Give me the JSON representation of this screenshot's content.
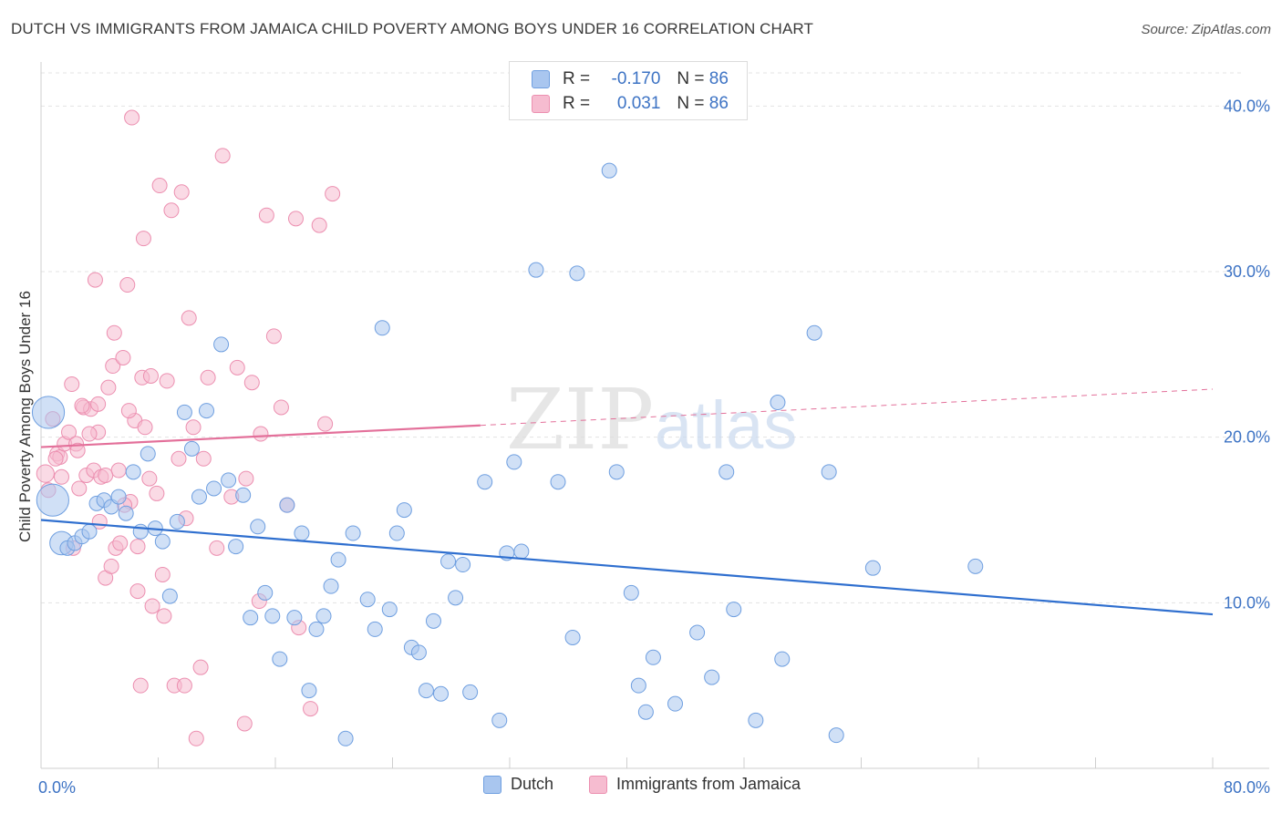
{
  "title": "DUTCH VS IMMIGRANTS FROM JAMAICA CHILD POVERTY AMONG BOYS UNDER 16 CORRELATION CHART",
  "source": "Source: ZipAtlas.com",
  "watermark": {
    "zip": "ZIP",
    "atlas": "atlas"
  },
  "colors": {
    "dutch_fill": "#a9c6ef",
    "dutch_stroke": "#6f9fe0",
    "dutch_line": "#2f6fcf",
    "jamaica_fill": "#f6bcd0",
    "jamaica_stroke": "#ec8fb0",
    "jamaica_line": "#e3709a",
    "axis_label": "#3d73c4",
    "grid": "#e3e3e3"
  },
  "stats": [
    {
      "r_label": "R =",
      "r_value": "-0.170",
      "n_label": "N =",
      "n_value": "86"
    },
    {
      "r_label": "R =",
      "r_value": "0.031",
      "n_label": "N =",
      "n_value": "86"
    }
  ],
  "legend": [
    "Dutch",
    "Immigrants from Jamaica"
  ],
  "chart_data": {
    "type": "scatter",
    "xlabel": "",
    "ylabel": "Child Poverty Among Boys Under 16",
    "xlim": [
      0,
      80
    ],
    "ylim": [
      0,
      42
    ],
    "x_tick_labels": [
      "0.0%",
      "80.0%"
    ],
    "y_tick_labels": [
      "10.0%",
      "20.0%",
      "30.0%",
      "40.0%"
    ],
    "y_ticks": [
      10,
      20,
      30,
      40
    ],
    "x_tick_marks": [
      0,
      8,
      16,
      24,
      32,
      40,
      48,
      56,
      64,
      72,
      80
    ],
    "grid": true,
    "legend_placement": "bottom",
    "series": [
      {
        "name": "Dutch",
        "trend": {
          "x": [
            0,
            80
          ],
          "y": [
            15.0,
            9.3
          ],
          "dashed_from": null
        },
        "points": [
          [
            0.5,
            21.5,
            22
          ],
          [
            0.8,
            16.2,
            22
          ],
          [
            1.4,
            13.6,
            16
          ],
          [
            1.8,
            13.3,
            10
          ],
          [
            2.3,
            13.6,
            10
          ],
          [
            2.8,
            14.0,
            10
          ],
          [
            3.3,
            14.3,
            10
          ],
          [
            3.8,
            16.0,
            10
          ],
          [
            4.3,
            16.2,
            10
          ],
          [
            4.8,
            15.8,
            10
          ],
          [
            5.3,
            16.4,
            10
          ],
          [
            5.8,
            15.4,
            10
          ],
          [
            6.3,
            17.9,
            10
          ],
          [
            6.8,
            14.3,
            10
          ],
          [
            7.3,
            19.0,
            10
          ],
          [
            7.8,
            14.5,
            10
          ],
          [
            8.3,
            13.7,
            10
          ],
          [
            8.8,
            10.4,
            10
          ],
          [
            9.3,
            14.9,
            10
          ],
          [
            9.8,
            21.5,
            10
          ],
          [
            10.3,
            19.3,
            10
          ],
          [
            10.8,
            16.4,
            10
          ],
          [
            11.3,
            21.6,
            10
          ],
          [
            11.8,
            16.9,
            10
          ],
          [
            12.3,
            25.6,
            10
          ],
          [
            12.8,
            17.4,
            10
          ],
          [
            13.3,
            13.4,
            10
          ],
          [
            13.8,
            16.5,
            10
          ],
          [
            14.3,
            9.1,
            10
          ],
          [
            14.8,
            14.6,
            10
          ],
          [
            15.3,
            10.6,
            10
          ],
          [
            15.8,
            9.2,
            10
          ],
          [
            16.3,
            6.6,
            10
          ],
          [
            16.8,
            15.9,
            10
          ],
          [
            17.3,
            9.1,
            10
          ],
          [
            17.8,
            14.2,
            10
          ],
          [
            18.3,
            4.7,
            10
          ],
          [
            18.8,
            8.4,
            10
          ],
          [
            19.3,
            9.2,
            10
          ],
          [
            19.8,
            11.0,
            10
          ],
          [
            20.3,
            12.6,
            10
          ],
          [
            20.8,
            1.8,
            10
          ],
          [
            21.3,
            14.2,
            10
          ],
          [
            22.3,
            10.2,
            10
          ],
          [
            22.8,
            8.4,
            10
          ],
          [
            23.3,
            26.6,
            10
          ],
          [
            23.8,
            9.6,
            10
          ],
          [
            24.3,
            14.2,
            10
          ],
          [
            24.8,
            15.6,
            10
          ],
          [
            25.3,
            7.3,
            10
          ],
          [
            25.8,
            7.0,
            10
          ],
          [
            26.3,
            4.7,
            10
          ],
          [
            26.8,
            8.9,
            10
          ],
          [
            27.3,
            4.5,
            10
          ],
          [
            27.8,
            12.5,
            10
          ],
          [
            28.3,
            10.3,
            10
          ],
          [
            28.8,
            12.3,
            10
          ],
          [
            29.3,
            4.6,
            10
          ],
          [
            30.3,
            17.3,
            10
          ],
          [
            31.3,
            2.9,
            10
          ],
          [
            31.8,
            13.0,
            10
          ],
          [
            32.3,
            18.5,
            10
          ],
          [
            32.8,
            13.1,
            10
          ],
          [
            33.8,
            30.1,
            10
          ],
          [
            35.3,
            17.3,
            10
          ],
          [
            36.3,
            7.9,
            10
          ],
          [
            36.6,
            29.9,
            10
          ],
          [
            38.8,
            36.1,
            10
          ],
          [
            39.3,
            17.9,
            10
          ],
          [
            40.3,
            10.6,
            10
          ],
          [
            40.8,
            5.0,
            10
          ],
          [
            41.3,
            3.4,
            10
          ],
          [
            41.8,
            6.7,
            10
          ],
          [
            43.3,
            3.9,
            10
          ],
          [
            44.8,
            8.2,
            10
          ],
          [
            45.8,
            5.5,
            10
          ],
          [
            46.8,
            17.9,
            10
          ],
          [
            47.3,
            9.6,
            10
          ],
          [
            48.8,
            2.9,
            10
          ],
          [
            50.3,
            22.1,
            10
          ],
          [
            50.6,
            6.6,
            10
          ],
          [
            52.8,
            26.3,
            10
          ],
          [
            53.8,
            17.9,
            10
          ],
          [
            54.3,
            2.0,
            10
          ],
          [
            56.8,
            12.1,
            10
          ],
          [
            63.8,
            12.2,
            10
          ]
        ]
      },
      {
        "name": "Immigrants from Jamaica",
        "trend": {
          "x": [
            0,
            80
          ],
          "y": [
            19.4,
            22.9
          ],
          "dashed_from": 30
        },
        "points": [
          [
            0.3,
            17.8,
            12
          ],
          [
            0.5,
            16.8,
            10
          ],
          [
            0.8,
            21.1,
            10
          ],
          [
            1.1,
            19.0,
            10
          ],
          [
            1.3,
            18.8,
            10
          ],
          [
            1.6,
            19.6,
            10
          ],
          [
            1.9,
            20.3,
            10
          ],
          [
            2.1,
            23.2,
            10
          ],
          [
            2.4,
            19.6,
            10
          ],
          [
            2.6,
            16.9,
            10
          ],
          [
            2.9,
            21.8,
            10
          ],
          [
            3.1,
            17.7,
            10
          ],
          [
            3.4,
            21.7,
            10
          ],
          [
            3.6,
            18.0,
            10
          ],
          [
            3.9,
            20.3,
            10
          ],
          [
            4.1,
            17.6,
            10
          ],
          [
            4.4,
            11.5,
            10
          ],
          [
            4.6,
            23.0,
            10
          ],
          [
            4.9,
            24.3,
            10
          ],
          [
            5.1,
            13.3,
            10
          ],
          [
            5.4,
            13.6,
            10
          ],
          [
            5.6,
            24.8,
            10
          ],
          [
            5.9,
            29.2,
            10
          ],
          [
            6.1,
            16.1,
            10
          ],
          [
            6.4,
            21.0,
            10
          ],
          [
            6.6,
            13.4,
            10
          ],
          [
            6.9,
            23.6,
            10
          ],
          [
            7.1,
            20.6,
            10
          ],
          [
            7.4,
            17.5,
            10
          ],
          [
            7.6,
            9.8,
            10
          ],
          [
            7.9,
            16.6,
            10
          ],
          [
            8.1,
            35.2,
            10
          ],
          [
            8.4,
            9.2,
            10
          ],
          [
            8.6,
            23.4,
            10
          ],
          [
            8.9,
            33.7,
            10
          ],
          [
            9.1,
            5.0,
            10
          ],
          [
            9.4,
            18.7,
            10
          ],
          [
            9.6,
            34.8,
            10
          ],
          [
            9.9,
            15.1,
            10
          ],
          [
            10.1,
            27.2,
            10
          ],
          [
            10.4,
            20.6,
            10
          ],
          [
            10.9,
            6.1,
            10
          ],
          [
            11.4,
            23.6,
            10
          ],
          [
            12.4,
            37.0,
            10
          ],
          [
            13.4,
            24.2,
            10
          ],
          [
            13.9,
            2.7,
            10
          ],
          [
            14.4,
            23.3,
            10
          ],
          [
            14.9,
            10.1,
            10
          ],
          [
            15.4,
            33.4,
            10
          ],
          [
            15.9,
            26.1,
            10
          ],
          [
            16.4,
            21.8,
            10
          ],
          [
            17.4,
            33.2,
            10
          ],
          [
            18.4,
            3.6,
            10
          ],
          [
            19.4,
            20.8,
            10
          ],
          [
            19.9,
            34.7,
            10
          ],
          [
            10.6,
            1.8,
            10
          ],
          [
            4.0,
            14.9,
            10
          ],
          [
            6.2,
            39.3,
            10
          ],
          [
            5.0,
            26.3,
            10
          ],
          [
            3.7,
            29.5,
            10
          ],
          [
            7.0,
            32.0,
            10
          ],
          [
            8.3,
            11.7,
            10
          ],
          [
            6.8,
            5.0,
            10
          ],
          [
            5.7,
            15.9,
            10
          ],
          [
            12.0,
            13.3,
            10
          ],
          [
            14.0,
            17.5,
            10
          ],
          [
            16.8,
            15.9,
            10
          ],
          [
            19.0,
            32.8,
            10
          ],
          [
            2.2,
            13.3,
            10
          ],
          [
            1.4,
            17.6,
            10
          ],
          [
            2.8,
            21.9,
            10
          ],
          [
            3.3,
            20.2,
            10
          ],
          [
            4.8,
            12.2,
            10
          ],
          [
            6.6,
            10.7,
            10
          ],
          [
            9.8,
            5.0,
            10
          ],
          [
            13.0,
            16.4,
            10
          ],
          [
            17.6,
            8.5,
            10
          ],
          [
            5.3,
            18.0,
            10
          ],
          [
            1.0,
            18.7,
            10
          ],
          [
            2.5,
            19.2,
            10
          ],
          [
            3.9,
            22.0,
            10
          ],
          [
            4.4,
            17.7,
            10
          ],
          [
            6.0,
            21.6,
            10
          ],
          [
            7.5,
            23.7,
            10
          ],
          [
            11.1,
            18.7,
            10
          ],
          [
            15.0,
            20.2,
            10
          ]
        ]
      }
    ]
  }
}
